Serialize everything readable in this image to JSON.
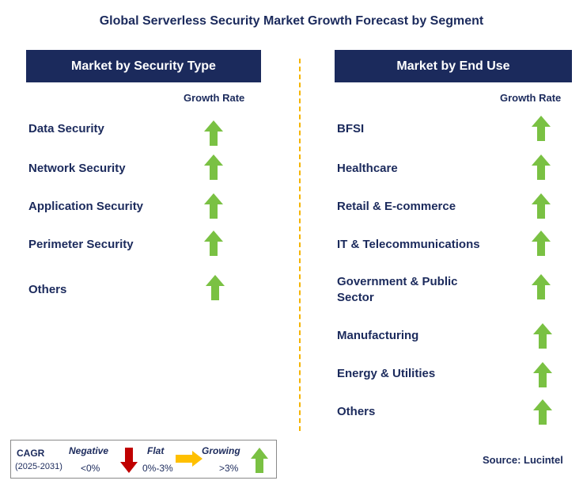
{
  "title": "Global Serverless Security Market Growth Forecast by Segment",
  "left_panel": {
    "header": "Market by Security Type",
    "growth_label": "Growth Rate",
    "items": [
      {
        "label": "Data Security",
        "trend": "growing"
      },
      {
        "label": "Network Security",
        "trend": "growing"
      },
      {
        "label": "Application Security",
        "trend": "growing"
      },
      {
        "label": "Perimeter Security",
        "trend": "growing"
      },
      {
        "label": "Others",
        "trend": "growing"
      }
    ]
  },
  "right_panel": {
    "header": "Market by End Use",
    "growth_label": "Growth Rate",
    "items": [
      {
        "label": "BFSI",
        "trend": "growing"
      },
      {
        "label": "Healthcare",
        "trend": "growing"
      },
      {
        "label": "Retail & E-commerce",
        "trend": "growing"
      },
      {
        "label": "IT & Telecommunications",
        "trend": "growing"
      },
      {
        "label": "Government & Public Sector",
        "trend": "growing"
      },
      {
        "label": "Manufacturing",
        "trend": "growing"
      },
      {
        "label": "Energy & Utilities",
        "trend": "growing"
      },
      {
        "label": "Others",
        "trend": "growing"
      }
    ]
  },
  "legend": {
    "cagr_label": "CAGR",
    "period": "(2025-2031)",
    "negative_label": "Negative",
    "negative_range": "<0%",
    "flat_label": "Flat",
    "flat_range": "0%-3%",
    "growing_label": "Growing",
    "growing_range": ">3%"
  },
  "source": "Source: Lucintel",
  "colors": {
    "navy": "#1b2a5c",
    "growing": "#7ac143",
    "negative": "#c00000",
    "flat": "#ffc000",
    "divider": "#f5b400"
  }
}
